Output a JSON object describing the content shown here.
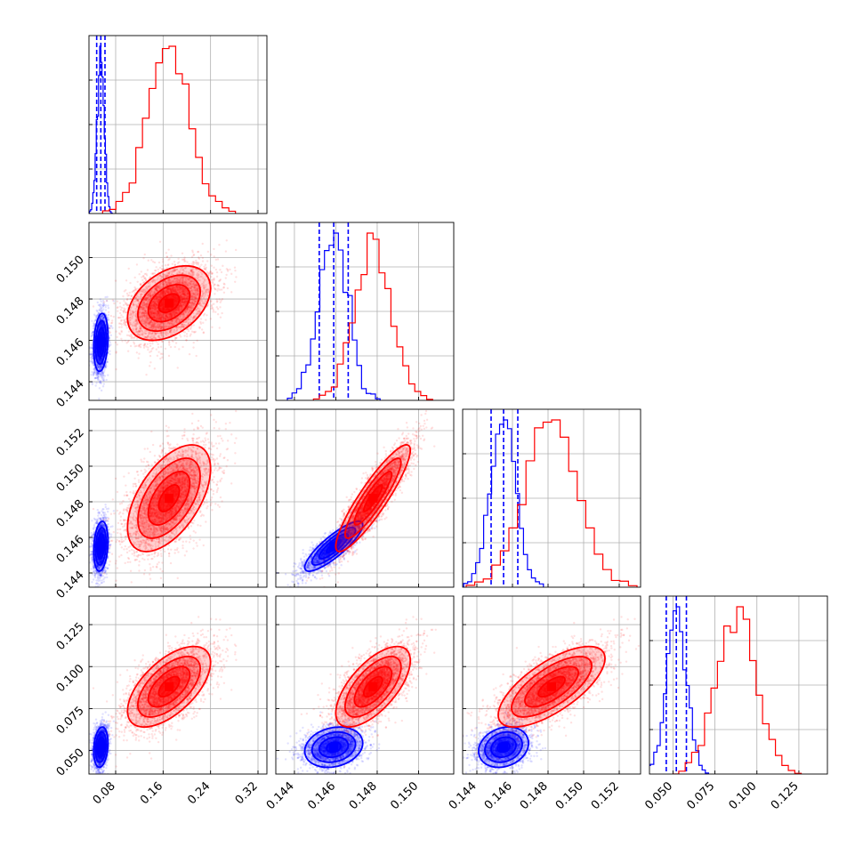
{
  "chart_data": {
    "type": "scatter",
    "subtype": "corner-plot",
    "grid": true,
    "legend": "none",
    "n_parameters": 4,
    "colors": {
      "model_a": "#0000ff",
      "model_b": "#ff0000"
    },
    "parameters": [
      {
        "range": [
          0.035,
          0.335
        ],
        "ticks": [
          0.08,
          0.16,
          0.24,
          0.32
        ],
        "tick_labels": [
          "0.08",
          "0.16",
          "0.24",
          "0.32"
        ]
      },
      {
        "range": [
          0.1431,
          0.1517
        ],
        "ticks": [
          0.144,
          0.146,
          0.148,
          0.15
        ],
        "tick_labels": [
          "0.144",
          "0.146",
          "0.148",
          "0.150"
        ]
      },
      {
        "range": [
          0.1432,
          0.1532
        ],
        "ticks": [
          0.144,
          0.146,
          0.148,
          0.15,
          0.152
        ],
        "tick_labels": [
          "0.144",
          "0.146",
          "0.148",
          "0.150",
          "0.152"
        ]
      },
      {
        "range": [
          0.036,
          0.142
        ],
        "ticks": [
          0.05,
          0.075,
          0.1,
          0.125
        ],
        "tick_labels": [
          "0.050",
          "0.075",
          "0.100",
          "0.125"
        ]
      }
    ],
    "series": [
      {
        "color": "#0000ff",
        "mean": [
          0.055,
          0.1459,
          0.1455,
          0.052
        ],
        "std": [
          0.006,
          0.0007,
          0.0007,
          0.006
        ],
        "quantiles": [
          [
            0.048,
            0.055,
            0.062
          ],
          [
            0.1452,
            0.1459,
            0.1466
          ],
          [
            0.1448,
            0.1455,
            0.1463
          ],
          [
            0.046,
            0.052,
            0.058
          ]
        ],
        "correlation": [
          [
            1,
            0.2,
            0.2,
            0.2
          ],
          [
            0.2,
            1,
            0.85,
            0.2
          ],
          [
            0.2,
            0.85,
            1,
            0.2
          ],
          [
            0.2,
            0.2,
            0.2,
            1
          ]
        ]
      },
      {
        "color": "#ff0000",
        "mean": [
          0.17,
          0.1478,
          0.1482,
          0.088
        ],
        "std": [
          0.035,
          0.0009,
          0.0015,
          0.012
        ],
        "quantiles": null,
        "correlation": [
          [
            1,
            0.4,
            0.55,
            0.6
          ],
          [
            0.4,
            1,
            0.9,
            0.65
          ],
          [
            0.55,
            0.9,
            1,
            0.7
          ],
          [
            0.6,
            0.65,
            0.7,
            1
          ]
        ]
      }
    ]
  }
}
